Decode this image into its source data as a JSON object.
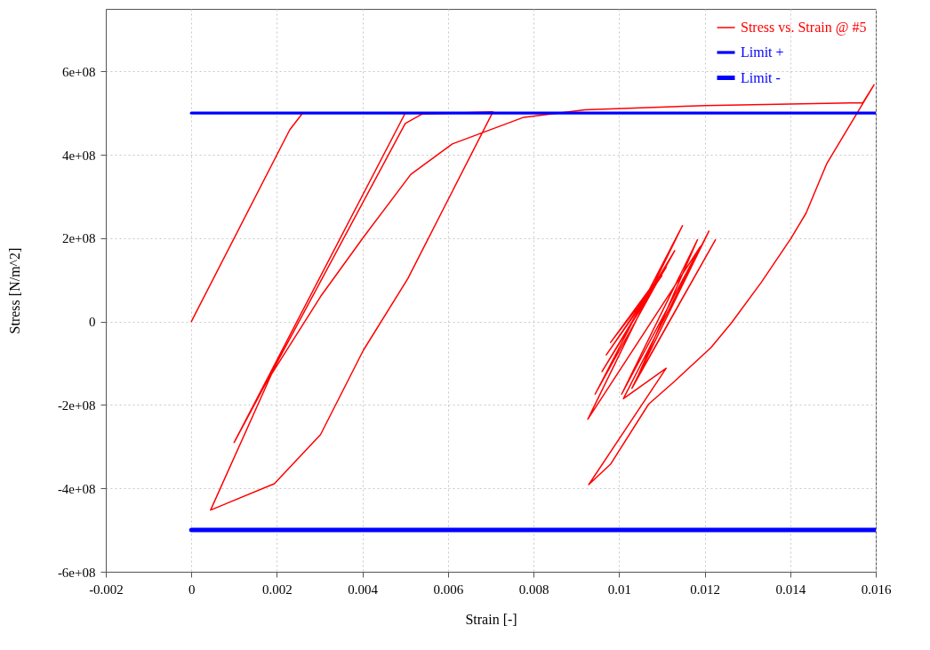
{
  "chart_data": {
    "type": "line",
    "xlabel": "Strain [-]",
    "ylabel": "Stress [N/m^2]",
    "xlim": [
      -0.002,
      0.016
    ],
    "xticks": [
      -0.002,
      0,
      0.002,
      0.004,
      0.006,
      0.008,
      0.01,
      0.012,
      0.014,
      0.016
    ],
    "ylim": [
      -600000000,
      750000000
    ],
    "yticks": [
      {
        "value": -600000000,
        "label": "-6e+08"
      },
      {
        "value": -400000000,
        "label": "-4e+08"
      },
      {
        "value": -200000000,
        "label": "-2e+08"
      },
      0,
      {
        "value": 200000000,
        "label": "2e+08"
      },
      {
        "value": 400000000,
        "label": "4e+08"
      },
      {
        "value": 600000000,
        "label": "6e+08"
      }
    ],
    "grid": true,
    "legend": "top right",
    "series": [
      {
        "name": "Stress vs. Strain @ #5",
        "color": "#ff0000",
        "x": [
          0,
          0.0023,
          0.0026,
          0.005,
          0.001,
          0.005,
          0.0054,
          0.00705,
          0.006,
          0.00506,
          0.00402,
          0.00302,
          0.00194,
          0.00045,
          0.00187,
          0.00302,
          0.00402,
          0.00513,
          0.0061,
          0.00777,
          0.0092,
          0.012,
          0.0157,
          0.01596,
          0.01485,
          0.01437,
          0.01402,
          0.01333,
          0.01262,
          0.01215,
          0.01131,
          0.01069,
          0.0098,
          0.00929,
          0.0111,
          0.0101,
          0.0121,
          0.0103,
          0.01225,
          0.0104,
          0.01183,
          0.01006,
          0.0119,
          0.00927,
          0.01148,
          0.00944,
          0.0113,
          0.0096,
          0.0111,
          0.0097,
          0.011,
          0.0098,
          0.0108
        ],
        "values": [
          0,
          460000000,
          500000000,
          500000000,
          -290000000,
          475000000,
          498000000,
          503000000,
          292000000,
          103000000,
          -69000000,
          -271000000,
          -389000000,
          -452000000,
          -127000000,
          60000000,
          202000000,
          353000000,
          426000000,
          490000000,
          508000000,
          518000000,
          525000000,
          568000000,
          378000000,
          260000000,
          200000000,
          95000000,
          -4000000,
          -62000000,
          -142000000,
          -198000000,
          -342000000,
          -391000000,
          -112000000,
          -185000000,
          217000000,
          -160000000,
          196000000,
          -140000000,
          196000000,
          -174000000,
          180000000,
          -234000000,
          230000000,
          -174000000,
          170000000,
          -120000000,
          130000000,
          -80000000,
          110000000,
          -50000000,
          90000000
        ]
      },
      {
        "name": "Limit +",
        "color": "#0000ff",
        "x": [
          0,
          0.016
        ],
        "values": [
          500000000,
          500000000
        ]
      },
      {
        "name": "Limit -",
        "color": "#0000ff",
        "x": [
          0,
          0.016
        ],
        "values": [
          -500000000,
          -500000000
        ]
      }
    ]
  }
}
